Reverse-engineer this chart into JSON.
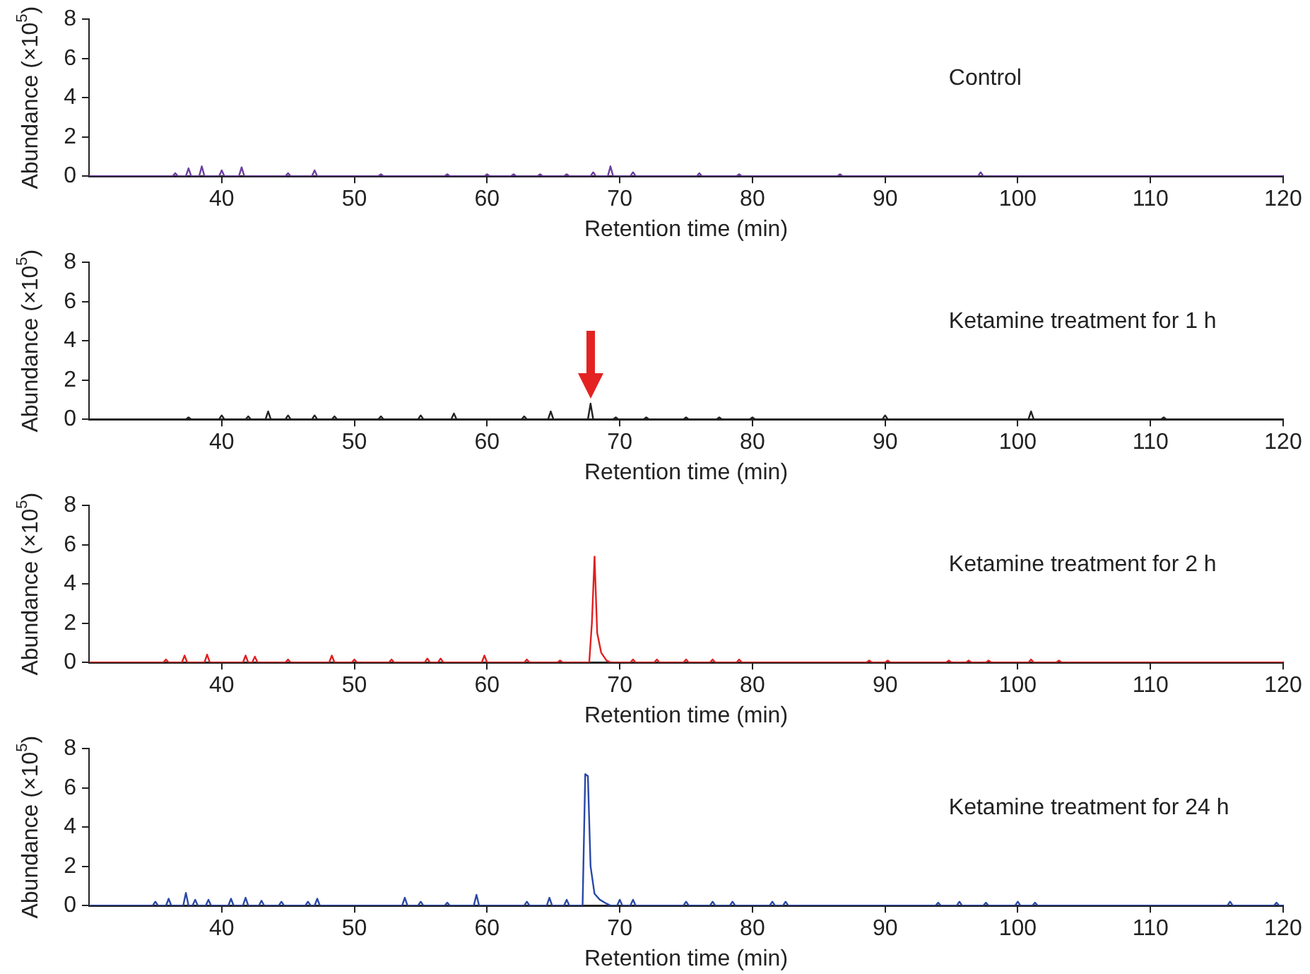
{
  "chart_data": [
    {
      "type": "line",
      "xlabel": "Retention time (min)",
      "ylabel": "Abundance (×10$^{5}$)",
      "annotations": [
        "Control"
      ],
      "xlim": [
        30,
        120
      ],
      "xticks": [
        40,
        50,
        60,
        70,
        80,
        90,
        100,
        110,
        120
      ],
      "ylim": [
        0,
        8
      ],
      "yticks": [
        0,
        2,
        4,
        6,
        8
      ],
      "grid": false,
      "legend": false,
      "marker": "none",
      "line_style": "solid",
      "series": [
        {
          "color": "#6b3fa0",
          "x": [
            30,
            36.3,
            36.5,
            36.7,
            37.3,
            37.5,
            37.7,
            38.3,
            38.5,
            38.7,
            39.8,
            40,
            40.2,
            41.3,
            41.5,
            41.7,
            44.8,
            45,
            45.2,
            46.8,
            47,
            47.2,
            51.8,
            52,
            52.2,
            56.8,
            57,
            57.2,
            59.8,
            60,
            60.2,
            61.8,
            62,
            62.2,
            63.8,
            64,
            64.2,
            65.8,
            66,
            66.2,
            67.8,
            68,
            68.2,
            69.1,
            69.3,
            69.5,
            70.8,
            71,
            71.2,
            75.8,
            76,
            76.2,
            78.8,
            79,
            79.2,
            86.4,
            86.6,
            86.8,
            97,
            97.2,
            97.4,
            120
          ],
          "values": [
            0,
            0,
            0.15,
            0,
            0,
            0.4,
            0,
            0,
            0.5,
            0,
            0,
            0.3,
            0,
            0,
            0.45,
            0,
            0,
            0.15,
            0,
            0,
            0.3,
            0,
            0,
            0.1,
            0,
            0,
            0.1,
            0,
            0,
            0.1,
            0,
            0,
            0.1,
            0,
            0,
            0.1,
            0,
            0,
            0.1,
            0,
            0,
            0.2,
            0,
            0,
            0.5,
            0,
            0,
            0.2,
            0,
            0,
            0.15,
            0,
            0,
            0.1,
            0,
            0,
            0.1,
            0,
            0,
            0.2,
            0,
            0
          ]
        }
      ]
    },
    {
      "type": "line",
      "xlabel": "Retention time (min)",
      "ylabel": "Abundance (×10$^{5}$)",
      "annotations": [
        "Ketamine treatment for 1 h"
      ],
      "xlim": [
        30,
        120
      ],
      "xticks": [
        40,
        50,
        60,
        70,
        80,
        90,
        100,
        110,
        120
      ],
      "ylim": [
        0,
        8
      ],
      "yticks": [
        0,
        2,
        4,
        6,
        8
      ],
      "grid": false,
      "legend": false,
      "marker": "none",
      "line_style": "solid",
      "series": [
        {
          "color": "#222222",
          "x": [
            30,
            37.3,
            37.5,
            37.7,
            39.8,
            40,
            40.2,
            41.8,
            42,
            42.2,
            43.3,
            43.5,
            43.7,
            44.8,
            45,
            45.2,
            46.8,
            47,
            47.2,
            48.3,
            48.5,
            48.7,
            51.8,
            52,
            52.2,
            54.8,
            55,
            55.2,
            57.3,
            57.5,
            57.7,
            62.6,
            62.8,
            63,
            64.6,
            64.8,
            65,
            67.6,
            67.8,
            68,
            69.5,
            69.7,
            69.9,
            71.8,
            72,
            72.2,
            74.8,
            75,
            75.2,
            77.3,
            77.5,
            77.7,
            79.8,
            80,
            80.2,
            89.8,
            90,
            90.2,
            100.8,
            101,
            101.2,
            110.8,
            111,
            111.2,
            120
          ],
          "values": [
            0,
            0,
            0.1,
            0,
            0,
            0.2,
            0,
            0,
            0.15,
            0,
            0,
            0.4,
            0,
            0,
            0.2,
            0,
            0,
            0.2,
            0,
            0,
            0.15,
            0,
            0,
            0.15,
            0,
            0,
            0.2,
            0,
            0,
            0.3,
            0,
            0,
            0.15,
            0,
            0,
            0.4,
            0,
            0,
            0.8,
            0,
            0,
            0.1,
            0,
            0,
            0.1,
            0,
            0,
            0.1,
            0,
            0,
            0.1,
            0,
            0,
            0.1,
            0,
            0,
            0.2,
            0,
            0,
            0.4,
            0,
            0,
            0.1,
            0,
            0
          ]
        }
      ]
    },
    {
      "type": "line",
      "xlabel": "Retention time (min)",
      "ylabel": "Abundance (×10$^{5}$)",
      "annotations": [
        "Ketamine treatment for 2 h"
      ],
      "xlim": [
        30,
        120
      ],
      "xticks": [
        40,
        50,
        60,
        70,
        80,
        90,
        100,
        110,
        120
      ],
      "ylim": [
        0,
        8
      ],
      "yticks": [
        0,
        2,
        4,
        6,
        8
      ],
      "grid": false,
      "legend": false,
      "marker": "none",
      "line_style": "solid",
      "series": [
        {
          "color": "#e02020",
          "x": [
            30,
            35.6,
            35.8,
            36,
            37,
            37.2,
            37.4,
            38.7,
            38.9,
            39.1,
            41.6,
            41.8,
            42,
            42.3,
            42.5,
            42.7,
            44.8,
            45,
            45.2,
            48.1,
            48.3,
            48.5,
            49.8,
            50,
            50.2,
            52.6,
            52.8,
            53,
            55.3,
            55.5,
            55.7,
            56.3,
            56.5,
            56.7,
            59.6,
            59.8,
            60,
            62.8,
            63,
            63.2,
            65.3,
            65.5,
            65.7,
            67.7,
            67.9,
            68.1,
            68.3,
            68.6,
            69,
            69.3,
            70.8,
            71,
            71.2,
            72.6,
            72.8,
            73,
            74.8,
            75,
            75.2,
            76.8,
            77,
            77.2,
            78.8,
            79,
            79.2,
            88.6,
            88.8,
            89,
            90,
            90.2,
            90.4,
            94.6,
            94.8,
            95,
            96.1,
            96.3,
            96.5,
            97.6,
            97.8,
            98,
            100.8,
            101,
            101.2,
            102.9,
            103.1,
            103.3,
            120
          ],
          "values": [
            0,
            0,
            0.15,
            0,
            0,
            0.35,
            0,
            0,
            0.4,
            0,
            0,
            0.35,
            0,
            0,
            0.3,
            0,
            0,
            0.15,
            0,
            0,
            0.35,
            0,
            0,
            0.15,
            0,
            0,
            0.15,
            0,
            0,
            0.2,
            0,
            0,
            0.2,
            0,
            0,
            0.35,
            0,
            0,
            0.15,
            0,
            0,
            0.1,
            0,
            0,
            2,
            5.4,
            1.5,
            0.5,
            0.1,
            0,
            0,
            0.15,
            0,
            0,
            0.15,
            0,
            0,
            0.15,
            0,
            0,
            0.15,
            0,
            0,
            0.15,
            0,
            0,
            0.1,
            0,
            0,
            0.1,
            0,
            0,
            0.1,
            0,
            0,
            0.1,
            0,
            0,
            0.1,
            0,
            0,
            0.15,
            0,
            0,
            0.1,
            0,
            0
          ]
        }
      ]
    },
    {
      "type": "line",
      "xlabel": "Retention time (min)",
      "ylabel": "Abundance (×10$^{5}$)",
      "annotations": [
        "Ketamine treatment for 24 h"
      ],
      "xlim": [
        30,
        120
      ],
      "xticks": [
        40,
        50,
        60,
        70,
        80,
        90,
        100,
        110,
        120
      ],
      "ylim": [
        0,
        8
      ],
      "yticks": [
        0,
        2,
        4,
        6,
        8
      ],
      "grid": false,
      "legend": false,
      "marker": "none",
      "line_style": "solid",
      "series": [
        {
          "color": "#2a48a8",
          "x": [
            30,
            34.8,
            35,
            35.2,
            35.8,
            36,
            36.2,
            37.1,
            37.3,
            37.5,
            37.8,
            38,
            38.2,
            38.8,
            39,
            39.2,
            40.5,
            40.7,
            40.9,
            41.6,
            41.8,
            42,
            42.8,
            43,
            43.2,
            44.3,
            44.5,
            44.7,
            46.3,
            46.5,
            46.7,
            47,
            47.2,
            47.4,
            53.6,
            53.8,
            54,
            54.8,
            55,
            55.2,
            56.8,
            57,
            57.2,
            59,
            59.2,
            59.4,
            62.8,
            63,
            63.2,
            64.5,
            64.7,
            64.9,
            65.8,
            66,
            66.2,
            67.2,
            67.4,
            67.6,
            67.8,
            68.1,
            68.5,
            69,
            69.3,
            69.8,
            70,
            70.2,
            70.8,
            71,
            71.2,
            74.8,
            75,
            75.2,
            76.8,
            77,
            77.2,
            78.3,
            78.5,
            78.7,
            81.3,
            81.5,
            81.7,
            82.3,
            82.5,
            82.7,
            93.8,
            94,
            94.2,
            95.4,
            95.6,
            95.8,
            97.4,
            97.6,
            97.8,
            99.8,
            100,
            100.2,
            101.1,
            101.3,
            101.5,
            115.8,
            116,
            116.2,
            119.3,
            119.5,
            119.7,
            120
          ],
          "values": [
            0,
            0,
            0.2,
            0,
            0,
            0.35,
            0,
            0,
            0.65,
            0,
            0,
            0.3,
            0,
            0,
            0.3,
            0,
            0,
            0.35,
            0,
            0,
            0.4,
            0,
            0,
            0.25,
            0,
            0,
            0.2,
            0,
            0,
            0.2,
            0,
            0,
            0.35,
            0,
            0,
            0.4,
            0,
            0,
            0.2,
            0,
            0,
            0.15,
            0,
            0,
            0.55,
            0,
            0,
            0.2,
            0,
            0,
            0.4,
            0,
            0,
            0.3,
            0,
            0,
            6.7,
            6.6,
            2,
            0.6,
            0.3,
            0.1,
            0,
            0,
            0.3,
            0,
            0,
            0.3,
            0,
            0,
            0.2,
            0,
            0,
            0.2,
            0,
            0,
            0.2,
            0,
            0,
            0.2,
            0,
            0,
            0.2,
            0,
            0,
            0.15,
            0,
            0,
            0.2,
            0,
            0,
            0.15,
            0,
            0,
            0.2,
            0,
            0,
            0.15,
            0,
            0,
            0.2,
            0,
            0,
            0.15,
            0,
            0
          ]
        }
      ]
    }
  ]
}
